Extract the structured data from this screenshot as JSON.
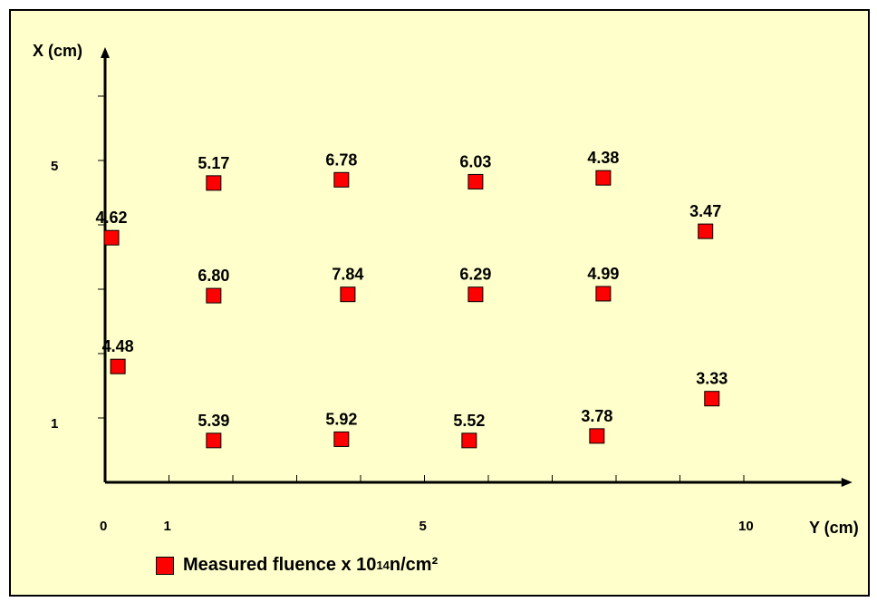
{
  "chart_data": {
    "type": "scatter",
    "xlabel": "Y (cm)",
    "ylabel": "X (cm)",
    "xlim": [
      0,
      11.5
    ],
    "ylim": [
      0,
      6
    ],
    "xticks": [
      1,
      2,
      3,
      4,
      5,
      6,
      7,
      8,
      9,
      10
    ],
    "yticks": [
      1,
      2,
      3,
      4,
      5,
      6
    ],
    "xtick_labels": [
      {
        "x": 0,
        "label": "0"
      },
      {
        "x": 1,
        "label": "1"
      },
      {
        "x": 5,
        "label": "5"
      },
      {
        "x": 10,
        "label": "10"
      }
    ],
    "ytick_labels": [
      {
        "y": 1,
        "label": "1"
      },
      {
        "y": 5,
        "label": "5"
      }
    ],
    "series": [
      {
        "color": "#ff0000",
        "marker": "square",
        "points": [
          {
            "x": 0.1,
            "y": 3.8,
            "label": "4.62"
          },
          {
            "x": 1.7,
            "y": 4.65,
            "label": "5.17"
          },
          {
            "x": 3.7,
            "y": 4.7,
            "label": "6.78"
          },
          {
            "x": 5.8,
            "y": 4.67,
            "label": "6.03"
          },
          {
            "x": 7.8,
            "y": 4.73,
            "label": "4.38"
          },
          {
            "x": 9.4,
            "y": 3.9,
            "label": "3.47"
          },
          {
            "x": 1.7,
            "y": 2.9,
            "label": "6.80"
          },
          {
            "x": 3.8,
            "y": 2.92,
            "label": "7.84"
          },
          {
            "x": 5.8,
            "y": 2.92,
            "label": "6.29"
          },
          {
            "x": 7.8,
            "y": 2.93,
            "label": "4.99"
          },
          {
            "x": 0.2,
            "y": 1.8,
            "label": "4.48"
          },
          {
            "x": 1.7,
            "y": 0.65,
            "label": "5.39"
          },
          {
            "x": 3.7,
            "y": 0.67,
            "label": "5.92"
          },
          {
            "x": 5.7,
            "y": 0.65,
            "label": "5.52"
          },
          {
            "x": 7.7,
            "y": 0.72,
            "label": "3.78"
          },
          {
            "x": 9.5,
            "y": 1.3,
            "label": "3.33"
          }
        ]
      }
    ],
    "legend": {
      "position": "bottom-left",
      "text": "Measured fluence x 10",
      "sup": "14",
      "unit": " n/cm²"
    },
    "background": "#ffffcc",
    "grid": false
  }
}
